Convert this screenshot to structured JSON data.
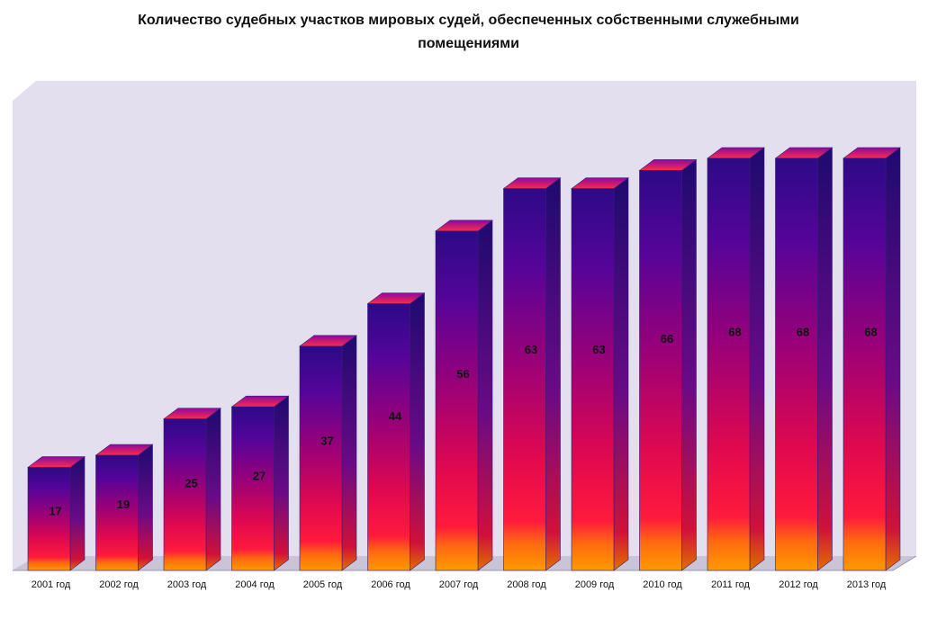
{
  "title_line1": "Количество судебных участков мировых судей, обеспеченных собственными служебными",
  "title_line2": "помещениями",
  "colors": {
    "wall": "#e4dfee",
    "floor": "#c9c4d6",
    "bar_top": "#2c0a86",
    "bar_mid": "#b2006e",
    "bar_red": "#ff1a3c",
    "bar_bottom": "#ff8a00",
    "cap": "#e0184a",
    "side": "#2a0b8a"
  },
  "chart_data": {
    "type": "bar",
    "style": "3d",
    "categories": [
      "2001 год",
      "2002 год",
      "2003 год",
      "2004 год",
      "2005 год",
      "2006 год",
      "2007 год",
      "2008 год",
      "2009 год",
      "2010 год",
      "2011 год",
      "2012 год",
      "2013 год"
    ],
    "values": [
      17,
      19,
      25,
      27,
      37,
      44,
      56,
      63,
      63,
      66,
      68,
      68,
      68
    ],
    "data_labels": [
      "17",
      "19",
      "25",
      "27",
      "37",
      "44",
      "56",
      "63",
      "63",
      "66",
      "68",
      "68",
      "68"
    ],
    "title": "Количество судебных участков мировых судей, обеспеченных собственными служебными помещениями",
    "xlabel": "",
    "ylabel": "",
    "ylim": [
      0,
      76
    ],
    "grid": false,
    "legend": "none"
  }
}
